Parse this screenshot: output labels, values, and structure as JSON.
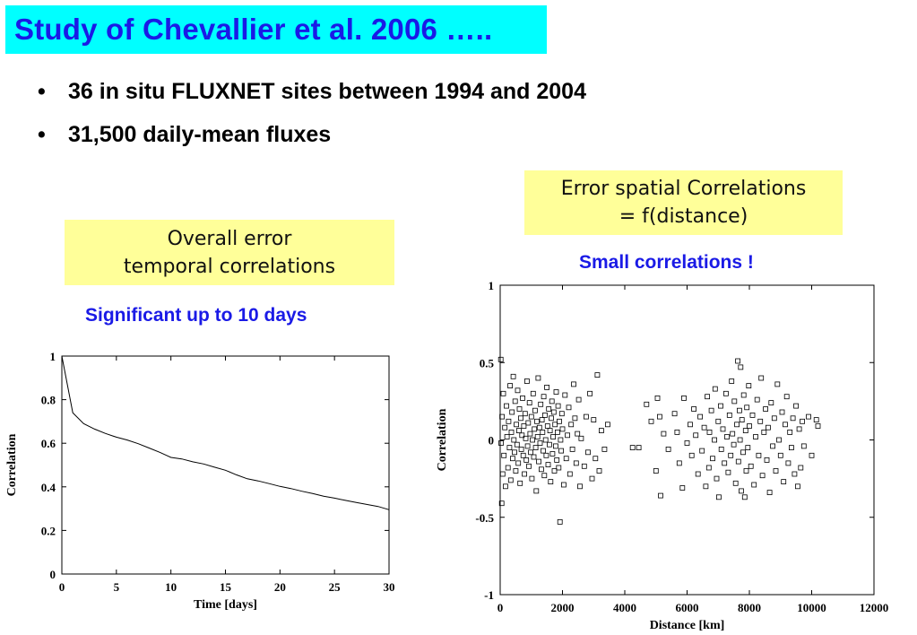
{
  "title": "Study of Chevallier et al. 2006 …..",
  "bullets": [
    "36 in situ FLUXNET sites between 1994 and 2004",
    "31,500 daily-mean fluxes"
  ],
  "bullet_symbol": "•",
  "boxes": {
    "temporal_line1": "Overall error",
    "temporal_line2": "temporal correlations",
    "spatial_line1": "Error spatial Correlations",
    "spatial_line2": "= f(distance)"
  },
  "notes": {
    "left": "Significant up to 10 days",
    "right": "Small correlations !"
  },
  "colors": {
    "title_bg": "#00ffff",
    "title_text": "#1a1ae6",
    "box_bg": "#ffff99",
    "note_text": "#1a1ae6"
  },
  "chart_data": [
    {
      "type": "line",
      "xlabel": "Time [days]",
      "ylabel": "Correlation",
      "xlim": [
        0,
        30
      ],
      "ylim": [
        0,
        1
      ],
      "xticks": [
        "0",
        "5",
        "10",
        "15",
        "20",
        "25",
        "30"
      ],
      "yticks": [
        "0",
        "0.2",
        "0.4",
        "0.6",
        "0.8",
        "1"
      ],
      "grid": false,
      "x": [
        0,
        1,
        2,
        3,
        4,
        5,
        6,
        7,
        8,
        9,
        10,
        11,
        12,
        13,
        14,
        15,
        16,
        17,
        18,
        19,
        20,
        21,
        22,
        23,
        24,
        25,
        26,
        27,
        28,
        29,
        30
      ],
      "y": [
        1.0,
        0.74,
        0.69,
        0.665,
        0.645,
        0.628,
        0.615,
        0.598,
        0.578,
        0.558,
        0.535,
        0.528,
        0.515,
        0.505,
        0.49,
        0.476,
        0.455,
        0.437,
        0.427,
        0.415,
        0.402,
        0.392,
        0.38,
        0.369,
        0.357,
        0.348,
        0.338,
        0.328,
        0.319,
        0.31,
        0.295
      ]
    },
    {
      "type": "scatter",
      "xlabel": "Distance [km]",
      "ylabel": "Correlation",
      "xlim": [
        0,
        12000
      ],
      "ylim": [
        -1,
        1
      ],
      "xticks": [
        "0",
        "2000",
        "4000",
        "6000",
        "8000",
        "10000",
        "12000"
      ],
      "yticks": [
        "-1",
        "-0.5",
        "0",
        "0.5",
        "1"
      ],
      "grid": false,
      "points": [
        [
          20,
          0.52
        ],
        [
          30,
          -0.02
        ],
        [
          50,
          -0.41
        ],
        [
          60,
          0.15
        ],
        [
          80,
          -0.22
        ],
        [
          100,
          0.3
        ],
        [
          120,
          -0.1
        ],
        [
          150,
          0.08
        ],
        [
          170,
          -0.3
        ],
        [
          200,
          0.22
        ],
        [
          220,
          0.02
        ],
        [
          250,
          -0.18
        ],
        [
          270,
          0.12
        ],
        [
          300,
          -0.05
        ],
        [
          320,
          0.35
        ],
        [
          340,
          -0.26
        ],
        [
          360,
          0.05
        ],
        [
          380,
          0.18
        ],
        [
          400,
          -0.12
        ],
        [
          420,
          0.41
        ],
        [
          440,
          0.0
        ],
        [
          460,
          -0.08
        ],
        [
          480,
          0.25
        ],
        [
          500,
          -0.2
        ],
        [
          520,
          0.1
        ],
        [
          540,
          -0.03
        ],
        [
          560,
          0.32
        ],
        [
          580,
          -0.15
        ],
        [
          600,
          0.06
        ],
        [
          620,
          0.2
        ],
        [
          640,
          -0.28
        ],
        [
          660,
          0.14
        ],
        [
          680,
          -0.06
        ],
        [
          700,
          0.03
        ],
        [
          720,
          0.27
        ],
        [
          740,
          -0.1
        ],
        [
          760,
          0.09
        ],
        [
          780,
          -0.22
        ],
        [
          800,
          0.17
        ],
        [
          820,
          0.01
        ],
        [
          840,
          -0.13
        ],
        [
          860,
          0.38
        ],
        [
          880,
          -0.04
        ],
        [
          900,
          0.11
        ],
        [
          920,
          -0.17
        ],
        [
          940,
          0.24
        ],
        [
          960,
          0.04
        ],
        [
          980,
          -0.08
        ],
        [
          1000,
          0.15
        ],
        [
          1020,
          -0.25
        ],
        [
          1040,
          0.0
        ],
        [
          1060,
          0.3
        ],
        [
          1080,
          -0.11
        ],
        [
          1100,
          0.07
        ],
        [
          1120,
          0.19
        ],
        [
          1140,
          -0.05
        ],
        [
          1160,
          -0.33
        ],
        [
          1180,
          0.12
        ],
        [
          1200,
          0.02
        ],
        [
          1220,
          0.4
        ],
        [
          1240,
          -0.14
        ],
        [
          1260,
          0.08
        ],
        [
          1280,
          -0.02
        ],
        [
          1300,
          0.23
        ],
        [
          1320,
          -0.19
        ],
        [
          1340,
          0.13
        ],
        [
          1360,
          0.05
        ],
        [
          1380,
          -0.07
        ],
        [
          1400,
          0.28
        ],
        [
          1420,
          -0.23
        ],
        [
          1440,
          0.16
        ],
        [
          1460,
          0.0
        ],
        [
          1480,
          -0.1
        ],
        [
          1500,
          0.34
        ],
        [
          1520,
          0.09
        ],
        [
          1540,
          -0.16
        ],
        [
          1560,
          0.2
        ],
        [
          1580,
          -0.03
        ],
        [
          1600,
          0.06
        ],
        [
          1620,
          -0.27
        ],
        [
          1640,
          0.14
        ],
        [
          1660,
          0.25
        ],
        [
          1680,
          -0.09
        ],
        [
          1700,
          0.02
        ],
        [
          1720,
          0.18
        ],
        [
          1740,
          -0.2
        ],
        [
          1760,
          0.1
        ],
        [
          1780,
          -0.04
        ],
        [
          1800,
          0.31
        ],
        [
          1820,
          -0.13
        ],
        [
          1840,
          0.05
        ],
        [
          1860,
          0.22
        ],
        [
          1880,
          -0.18
        ],
        [
          1900,
          0.12
        ],
        [
          1920,
          -0.53
        ],
        [
          1940,
          0.0
        ],
        [
          1960,
          -0.07
        ],
        [
          1980,
          0.17
        ],
        [
          2000,
          0.07
        ],
        [
          2040,
          -0.29
        ],
        [
          2080,
          0.29
        ],
        [
          2120,
          -0.12
        ],
        [
          2160,
          0.03
        ],
        [
          2200,
          0.21
        ],
        [
          2240,
          -0.22
        ],
        [
          2280,
          0.1
        ],
        [
          2320,
          -0.06
        ],
        [
          2360,
          0.36
        ],
        [
          2400,
          0.14
        ],
        [
          2440,
          -0.15
        ],
        [
          2480,
          0.04
        ],
        [
          2520,
          0.26
        ],
        [
          2560,
          -0.3
        ],
        [
          2600,
          0.01
        ],
        [
          2700,
          -0.17
        ],
        [
          2760,
          0.15
        ],
        [
          2820,
          -0.08
        ],
        [
          2880,
          0.3
        ],
        [
          2950,
          -0.25
        ],
        [
          3000,
          0.13
        ],
        [
          3060,
          -0.12
        ],
        [
          3120,
          0.42
        ],
        [
          3180,
          -0.2
        ],
        [
          3250,
          0.06
        ],
        [
          3350,
          -0.06
        ],
        [
          3450,
          0.1
        ],
        [
          4250,
          -0.05
        ],
        [
          4450,
          -0.05
        ],
        [
          4700,
          0.23
        ],
        [
          4850,
          0.12
        ],
        [
          5000,
          -0.2
        ],
        [
          5050,
          0.27
        ],
        [
          5120,
          0.15
        ],
        [
          5150,
          -0.36
        ],
        [
          5250,
          0.04
        ],
        [
          5400,
          -0.06
        ],
        [
          5600,
          0.17
        ],
        [
          5680,
          0.05
        ],
        [
          5750,
          -0.15
        ],
        [
          5850,
          -0.31
        ],
        [
          5900,
          0.27
        ],
        [
          6000,
          -0.02
        ],
        [
          6100,
          0.1
        ],
        [
          6150,
          -0.1
        ],
        [
          6220,
          0.2
        ],
        [
          6280,
          0.03
        ],
        [
          6350,
          -0.22
        ],
        [
          6420,
          0.15
        ],
        [
          6480,
          -0.07
        ],
        [
          6550,
          0.08
        ],
        [
          6600,
          -0.3
        ],
        [
          6650,
          0.28
        ],
        [
          6700,
          -0.18
        ],
        [
          6720,
          0.05
        ],
        [
          6780,
          0.19
        ],
        [
          6820,
          -0.12
        ],
        [
          6880,
          0.0
        ],
        [
          6900,
          0.33
        ],
        [
          6950,
          -0.25
        ],
        [
          7000,
          0.12
        ],
        [
          7020,
          -0.37
        ],
        [
          7080,
          0.22
        ],
        [
          7100,
          -0.06
        ],
        [
          7150,
          0.07
        ],
        [
          7200,
          -0.15
        ],
        [
          7250,
          0.3
        ],
        [
          7280,
          0.02
        ],
        [
          7320,
          -0.21
        ],
        [
          7360,
          0.16
        ],
        [
          7400,
          -0.1
        ],
        [
          7430,
          0.38
        ],
        [
          7460,
          0.04
        ],
        [
          7500,
          -0.03
        ],
        [
          7520,
          0.25
        ],
        [
          7560,
          -0.28
        ],
        [
          7600,
          0.1
        ],
        [
          7630,
          0.51
        ],
        [
          7650,
          -0.14
        ],
        [
          7680,
          0.19
        ],
        [
          7700,
          0.0
        ],
        [
          7720,
          0.47
        ],
        [
          7740,
          -0.33
        ],
        [
          7760,
          0.13
        ],
        [
          7800,
          -0.08
        ],
        [
          7820,
          0.29
        ],
        [
          7850,
          -0.37
        ],
        [
          7880,
          0.06
        ],
        [
          7900,
          -0.2
        ],
        [
          7920,
          0.21
        ],
        [
          7950,
          -0.05
        ],
        [
          7980,
          0.35
        ],
        [
          8000,
          0.09
        ],
        [
          8050,
          -0.17
        ],
        [
          8100,
          0.16
        ],
        [
          8150,
          -0.29
        ],
        [
          8200,
          0.02
        ],
        [
          8250,
          0.26
        ],
        [
          8300,
          -0.1
        ],
        [
          8350,
          0.12
        ],
        [
          8380,
          0.4
        ],
        [
          8420,
          -0.23
        ],
        [
          8470,
          0.05
        ],
        [
          8520,
          0.2
        ],
        [
          8560,
          -0.13
        ],
        [
          8600,
          0.08
        ],
        [
          8650,
          -0.34
        ],
        [
          8700,
          0.24
        ],
        [
          8750,
          -0.04
        ],
        [
          8800,
          0.14
        ],
        [
          8850,
          -0.2
        ],
        [
          8900,
          0.36
        ],
        [
          8950,
          0.0
        ],
        [
          9000,
          -0.1
        ],
        [
          9050,
          0.18
        ],
        [
          9100,
          -0.27
        ],
        [
          9150,
          0.1
        ],
        [
          9200,
          0.28
        ],
        [
          9250,
          -0.15
        ],
        [
          9300,
          0.05
        ],
        [
          9350,
          -0.05
        ],
        [
          9400,
          0.14
        ],
        [
          9450,
          -0.22
        ],
        [
          9500,
          0.22
        ],
        [
          9550,
          -0.3
        ],
        [
          9600,
          0.07
        ],
        [
          9650,
          -0.18
        ],
        [
          9700,
          0.12
        ],
        [
          9750,
          -0.04
        ],
        [
          9900,
          0.15
        ],
        [
          10000,
          -0.1
        ],
        [
          10150,
          0.13
        ],
        [
          10200,
          0.09
        ]
      ]
    }
  ]
}
